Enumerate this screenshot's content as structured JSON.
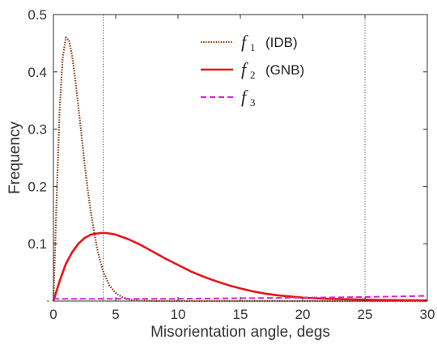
{
  "chart_data": {
    "type": "line",
    "xlabel": "Misorientation angle, degs",
    "ylabel": "Frequency",
    "xlim": [
      0,
      30
    ],
    "ylim": [
      0,
      0.5
    ],
    "x_ticks": [
      0,
      5,
      10,
      15,
      20,
      25,
      30
    ],
    "y_ticks": [
      0,
      0.1,
      0.2,
      0.3,
      0.4,
      0.5
    ],
    "x_tick_labels": [
      "0",
      "5",
      "10",
      "15",
      "20",
      "25",
      "30"
    ],
    "y_tick_labels": [
      "",
      "0.1",
      "0.2",
      "0.3",
      "0.4",
      "0.5"
    ],
    "grid": false,
    "legend_position": "top-center",
    "reference_lines_x": [
      4,
      25
    ],
    "series": [
      {
        "symbol": "f",
        "subscript": "1",
        "suffix": "(IDB)",
        "color": "#8B3A0E",
        "style": "dotted",
        "x": [
          0,
          0.25,
          0.5,
          0.75,
          1,
          1.25,
          1.5,
          1.75,
          2,
          2.25,
          2.5,
          2.75,
          3,
          3.25,
          3.5,
          3.75,
          4,
          4.5,
          5,
          5.5,
          6,
          6.5,
          7,
          8,
          9,
          10,
          12,
          15,
          20,
          25,
          30
        ],
        "values": [
          0,
          0.17,
          0.335,
          0.425,
          0.46,
          0.455,
          0.428,
          0.387,
          0.34,
          0.29,
          0.24,
          0.195,
          0.156,
          0.122,
          0.093,
          0.07,
          0.052,
          0.027,
          0.014,
          0.007,
          0.003,
          0.0015,
          0.0007,
          0.0001,
          0,
          0,
          0,
          0,
          0,
          0,
          0
        ]
      },
      {
        "symbol": "f",
        "subscript": "2",
        "suffix": "(GNB)",
        "color": "#E8141A",
        "style": "solid",
        "x": [
          0,
          0.5,
          1,
          1.5,
          2,
          2.5,
          3,
          3.5,
          4,
          4.5,
          5,
          6,
          7,
          8,
          9,
          10,
          11,
          12,
          13,
          14,
          15,
          16,
          17,
          18,
          19,
          20,
          22,
          24,
          26,
          28,
          30
        ],
        "values": [
          0,
          0.035,
          0.065,
          0.085,
          0.1,
          0.11,
          0.116,
          0.118,
          0.119,
          0.118,
          0.116,
          0.108,
          0.098,
          0.086,
          0.074,
          0.063,
          0.052,
          0.043,
          0.035,
          0.028,
          0.022,
          0.017,
          0.013,
          0.01,
          0.008,
          0.006,
          0.004,
          0.003,
          0.002,
          0.0015,
          0.001
        ]
      },
      {
        "symbol": "f",
        "subscript": "3",
        "suffix": "",
        "color": "#E020E0",
        "style": "dashed",
        "x": [
          0,
          5,
          10,
          15,
          20,
          25,
          30
        ],
        "values": [
          0.004,
          0.004,
          0.004,
          0.005,
          0.006,
          0.007,
          0.009
        ]
      }
    ]
  }
}
